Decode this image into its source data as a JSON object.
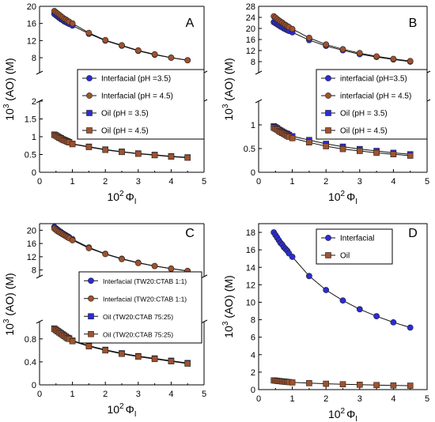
{
  "chart_data": [
    {
      "panel": "A",
      "type": "scatter",
      "xlabel_prefix": "10",
      "xlabel_sup": "2",
      "xlabel_symbol": "Φ",
      "xlabel_sub": "I",
      "ylabel_prefix": "10",
      "ylabel_sup": "3",
      "ylabel_rest": " (AO) (M)",
      "xlim": [
        0,
        5
      ],
      "x_ticks": [
        0,
        1,
        2,
        3,
        4,
        5
      ],
      "y_axis_break": true,
      "ylim_upper": [
        4.5,
        20
      ],
      "y_ticks_upper": [
        8,
        12,
        16,
        20
      ],
      "ylim_lower": [
        0,
        2
      ],
      "y_ticks_lower": [
        0,
        0.5,
        1,
        1.5,
        2
      ],
      "legend_position": "center-right",
      "x": [
        0.45,
        0.5,
        0.55,
        0.6,
        0.65,
        0.7,
        0.75,
        0.8,
        0.85,
        0.9,
        1.0,
        1.5,
        2.0,
        2.5,
        3.0,
        3.5,
        4.0,
        4.5
      ],
      "series": [
        {
          "name": "Interfacial (pH =3.5)",
          "marker": "circle",
          "color": "#2b2bd6",
          "values": [
            18.2,
            17.9,
            17.6,
            17.3,
            17.0,
            16.8,
            16.5,
            16.3,
            16.1,
            15.9,
            15.5,
            13.6,
            12.0,
            10.8,
            9.6,
            8.7,
            8.0,
            7.4
          ]
        },
        {
          "name": "Interfacial (pH = 4.5)",
          "marker": "circle",
          "color": "#a0522d",
          "values": [
            18.9,
            18.6,
            18.3,
            18.0,
            17.7,
            17.4,
            17.1,
            16.9,
            16.6,
            16.4,
            16.0,
            13.8,
            12.1,
            10.9,
            9.7,
            8.8,
            8.0,
            7.4
          ]
        },
        {
          "name": "Oil (pH = 3.5)",
          "marker": "square",
          "color": "#2b2bd6",
          "values": [
            1.06,
            1.04,
            1.01,
            0.98,
            0.96,
            0.93,
            0.91,
            0.89,
            0.87,
            0.85,
            0.8,
            0.72,
            0.64,
            0.58,
            0.53,
            0.49,
            0.45,
            0.42
          ]
        },
        {
          "name": "Oil (pH = 4.5)",
          "marker": "square",
          "color": "#a0522d",
          "values": [
            1.05,
            1.03,
            1.0,
            0.97,
            0.95,
            0.92,
            0.9,
            0.88,
            0.86,
            0.84,
            0.79,
            0.71,
            0.63,
            0.57,
            0.52,
            0.48,
            0.44,
            0.41
          ]
        }
      ]
    },
    {
      "panel": "B",
      "type": "scatter",
      "xlabel_prefix": "10",
      "xlabel_sup": "2",
      "xlabel_symbol": "Φ",
      "xlabel_sub": "I",
      "ylabel_prefix": "10",
      "ylabel_sup": "3",
      "ylabel_rest": " (AO) (M)",
      "xlim": [
        0,
        5
      ],
      "x_ticks": [
        0,
        1,
        2,
        3,
        4,
        5
      ],
      "y_axis_break": true,
      "ylim_upper": [
        4,
        28
      ],
      "y_ticks_upper": [
        8,
        12,
        16,
        20,
        24,
        28
      ],
      "ylim_lower": [
        0,
        1.5
      ],
      "y_ticks_lower": [
        0,
        0.5,
        1
      ],
      "legend_position": "center-right",
      "x": [
        0.45,
        0.5,
        0.55,
        0.6,
        0.65,
        0.7,
        0.75,
        0.8,
        0.85,
        0.9,
        1.0,
        1.5,
        2.0,
        2.5,
        3.0,
        3.5,
        4.0,
        4.5
      ],
      "series": [
        {
          "name": "interfacial (pH=3.5)",
          "marker": "circle",
          "color": "#2b2bd6",
          "values": [
            22.3,
            21.9,
            21.5,
            21.1,
            20.7,
            20.4,
            20.0,
            19.7,
            19.4,
            19.1,
            18.6,
            15.8,
            13.7,
            12.1,
            10.7,
            9.7,
            8.8,
            8.0
          ]
        },
        {
          "name": "interfacial (pH = 4.5)",
          "marker": "circle",
          "color": "#a0522d",
          "values": [
            24.4,
            23.9,
            23.4,
            22.9,
            22.5,
            22.1,
            21.6,
            21.2,
            20.8,
            20.5,
            19.8,
            16.6,
            14.2,
            12.5,
            11.1,
            9.9,
            9.0,
            8.2
          ]
        },
        {
          "name": "Oil (pH = 3.5)",
          "marker": "square",
          "color": "#2b2bd6",
          "values": [
            0.97,
            0.95,
            0.93,
            0.9,
            0.88,
            0.86,
            0.84,
            0.82,
            0.81,
            0.79,
            0.76,
            0.68,
            0.6,
            0.54,
            0.49,
            0.45,
            0.41,
            0.38
          ]
        },
        {
          "name": "Oil (pH = 4.5)",
          "marker": "square",
          "color": "#a0522d",
          "values": [
            0.94,
            0.92,
            0.9,
            0.87,
            0.85,
            0.83,
            0.81,
            0.79,
            0.77,
            0.75,
            0.72,
            0.63,
            0.55,
            0.49,
            0.45,
            0.41,
            0.38,
            0.35
          ]
        }
      ]
    },
    {
      "panel": "C",
      "type": "scatter",
      "xlabel_prefix": "10",
      "xlabel_sup": "2",
      "xlabel_symbol": "Φ",
      "xlabel_sub": "I",
      "ylabel_prefix": "10",
      "ylabel_sup": "3",
      "ylabel_rest": " (AO) (M)",
      "xlim": [
        0,
        5
      ],
      "x_ticks": [
        0,
        1,
        2,
        3,
        4,
        5
      ],
      "y_axis_break": true,
      "ylim_upper": [
        6,
        22
      ],
      "y_ticks_upper": [
        8,
        12,
        16,
        20
      ],
      "ylim_lower": [
        0,
        1.1
      ],
      "y_ticks_lower": [
        0,
        0.4,
        0.8
      ],
      "legend_position": "center-right",
      "x": [
        0.45,
        0.5,
        0.55,
        0.6,
        0.65,
        0.7,
        0.75,
        0.8,
        0.85,
        0.9,
        1.0,
        1.5,
        2.0,
        2.5,
        3.0,
        3.5,
        4.0,
        4.5
      ],
      "series": [
        {
          "name": "Interfacial (TW20:CTAB 1:1)",
          "marker": "circle",
          "color": "#2b2bd6",
          "values": [
            21.0,
            20.6,
            20.2,
            19.8,
            19.5,
            19.1,
            18.8,
            18.5,
            18.2,
            17.9,
            17.3,
            14.8,
            12.9,
            11.4,
            10.2,
            9.2,
            8.4,
            7.7
          ]
        },
        {
          "name": "Interfacial (TW20:CTAB 1:1)",
          "marker": "circle",
          "color": "#a0522d",
          "values": [
            20.5,
            20.1,
            19.7,
            19.4,
            19.1,
            18.8,
            18.5,
            18.2,
            17.9,
            17.6,
            17.0,
            14.6,
            12.8,
            11.3,
            10.1,
            9.2,
            8.4,
            7.7
          ]
        },
        {
          "name": "Oil (TW20:CTAB 75:25)",
          "marker": "square",
          "color": "#2b2bd6",
          "values": [
            0.98,
            0.96,
            0.94,
            0.92,
            0.9,
            0.88,
            0.86,
            0.84,
            0.82,
            0.81,
            0.77,
            0.68,
            0.61,
            0.55,
            0.5,
            0.46,
            0.42,
            0.38
          ]
        },
        {
          "name": "Oil (TW20:CTAB 75:25)",
          "marker": "square",
          "color": "#a0522d",
          "values": [
            0.97,
            0.95,
            0.93,
            0.91,
            0.89,
            0.87,
            0.85,
            0.83,
            0.81,
            0.8,
            0.76,
            0.67,
            0.6,
            0.54,
            0.49,
            0.45,
            0.41,
            0.37
          ]
        }
      ]
    },
    {
      "panel": "D",
      "type": "scatter",
      "xlabel_prefix": "10",
      "xlabel_sup": "2",
      "xlabel_symbol": "Φ",
      "xlabel_sub": "I",
      "ylabel_prefix": "10",
      "ylabel_sup": "3",
      "ylabel_rest": " (AO) (M)",
      "xlim": [
        0,
        5
      ],
      "x_ticks": [
        0,
        1,
        2,
        3,
        4,
        5
      ],
      "y_axis_break": false,
      "ylim": [
        0,
        19
      ],
      "y_ticks": [
        0,
        2,
        4,
        6,
        8,
        10,
        12,
        14,
        16,
        18
      ],
      "legend_position": "top-center",
      "x": [
        0.45,
        0.5,
        0.55,
        0.6,
        0.65,
        0.7,
        0.75,
        0.8,
        0.85,
        0.9,
        1.0,
        1.5,
        2.0,
        2.5,
        3.0,
        3.5,
        4.0,
        4.5
      ],
      "series": [
        {
          "name": "Interfacial",
          "marker": "circle",
          "color": "#2b2bd6",
          "values": [
            18.0,
            17.7,
            17.4,
            17.1,
            16.8,
            16.6,
            16.3,
            16.1,
            15.9,
            15.6,
            15.2,
            13.0,
            11.4,
            10.2,
            9.2,
            8.4,
            7.7,
            7.1
          ]
        },
        {
          "name": "Oil",
          "marker": "square",
          "color": "#a0522d",
          "values": [
            1.05,
            1.03,
            1.0,
            0.98,
            0.96,
            0.94,
            0.92,
            0.9,
            0.88,
            0.86,
            0.82,
            0.74,
            0.67,
            0.61,
            0.56,
            0.52,
            0.48,
            0.45
          ]
        }
      ]
    }
  ]
}
